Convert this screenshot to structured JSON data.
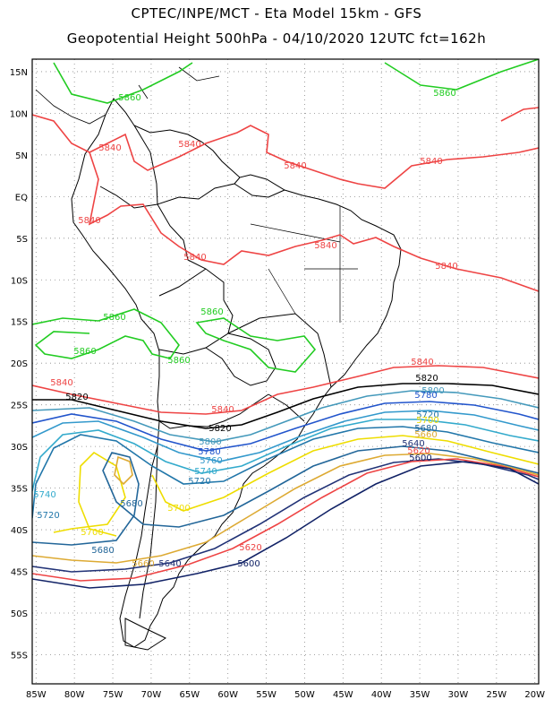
{
  "title_line1": "CPTEC/INPE/MCT -  Eta Model 15km - GFS",
  "title_line2": "Geopotential Height 500hPa - 04/10/2020 12UTC fct=162h",
  "lat_ticks": [
    "15N",
    "10N",
    "5N",
    "EQ",
    "5S",
    "10S",
    "15S",
    "20S",
    "25S",
    "30S",
    "35S",
    "40S",
    "45S",
    "50S",
    "55S"
  ],
  "lon_ticks": [
    "85W",
    "80W",
    "75W",
    "70W",
    "65W",
    "60W",
    "55W",
    "50W",
    "45W",
    "40W",
    "35W",
    "30W",
    "25W",
    "20W"
  ],
  "colors": {
    "5860": "#22cc22",
    "5840": "#ee4444",
    "5820": "#000000",
    "5800": "#4499bb",
    "5780": "#2255cc",
    "5760": "#3399cc",
    "5740": "#33aacc",
    "5720": "#2277aa",
    "5700": "#eedd00",
    "5680": "#226699",
    "5660": "#ddaa33",
    "5640": "#223377",
    "5620": "#ee4444",
    "5600": "#112266",
    "border": "#000000"
  },
  "contour_labels": [
    {
      "text": "5860",
      "level": "5860"
    },
    {
      "text": "5860",
      "level": "5860"
    },
    {
      "text": "5860",
      "level": "5860"
    },
    {
      "text": "5860",
      "level": "5860"
    },
    {
      "text": "5860",
      "level": "5860"
    },
    {
      "text": "5860",
      "level": "5860"
    },
    {
      "text": "5840",
      "level": "5840"
    },
    {
      "text": "5840",
      "level": "5840"
    },
    {
      "text": "5840",
      "level": "5840"
    },
    {
      "text": "5840",
      "level": "5840"
    },
    {
      "text": "5840",
      "level": "5840"
    },
    {
      "text": "5840",
      "level": "5840"
    },
    {
      "text": "5840",
      "level": "5840"
    },
    {
      "text": "5840",
      "level": "5840"
    },
    {
      "text": "5840",
      "level": "5840"
    },
    {
      "text": "5840",
      "level": "5840"
    },
    {
      "text": "5840",
      "level": "5840"
    },
    {
      "text": "5820",
      "level": "5820"
    },
    {
      "text": "5820",
      "level": "5820"
    },
    {
      "text": "5820",
      "level": "5820"
    },
    {
      "text": "5800",
      "level": "5800"
    },
    {
      "text": "5800",
      "level": "5800"
    },
    {
      "text": "5780",
      "level": "5780"
    },
    {
      "text": "5780",
      "level": "5780"
    },
    {
      "text": "5760",
      "level": "5760"
    },
    {
      "text": "5740",
      "level": "5740"
    },
    {
      "text": "5740",
      "level": "5740"
    },
    {
      "text": "5720",
      "level": "5720"
    },
    {
      "text": "5720",
      "level": "5720"
    },
    {
      "text": "5720",
      "level": "5720"
    },
    {
      "text": "5700",
      "level": "5700"
    },
    {
      "text": "5700",
      "level": "5700"
    },
    {
      "text": "5700",
      "level": "5700"
    },
    {
      "text": "5680",
      "level": "5680"
    },
    {
      "text": "5680",
      "level": "5680"
    },
    {
      "text": "5680",
      "level": "5680"
    },
    {
      "text": "5660",
      "level": "5660"
    },
    {
      "text": "5660",
      "level": "5660"
    },
    {
      "text": "5640",
      "level": "5640"
    },
    {
      "text": "5640",
      "level": "5640"
    },
    {
      "text": "5620",
      "level": "5620"
    },
    {
      "text": "5620",
      "level": "5620"
    },
    {
      "text": "5600",
      "level": "5600"
    },
    {
      "text": "5600",
      "level": "5600"
    }
  ]
}
